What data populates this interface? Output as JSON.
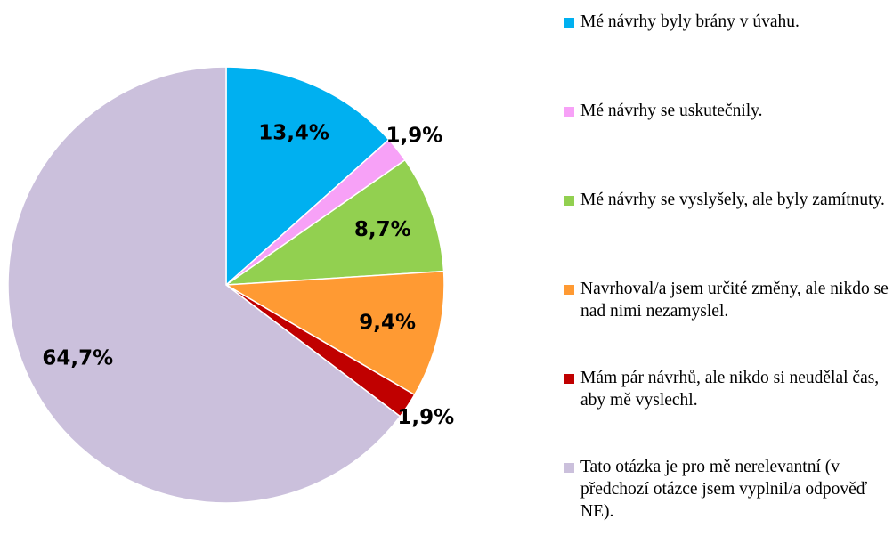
{
  "chart_data": {
    "type": "pie",
    "categories": [
      "Mé návrhy byly brány v úvahu.",
      "Mé návrhy se uskutečnily.",
      "Mé návrhy se vyslyšely, ale byly zamítnuty.",
      "Navrhoval/a jsem určité změny, ale nikdo se nad nimi nezamyslel.",
      "Mám pár návrhů, ale nikdo si neudělal čas, aby mě vyslechl.",
      "Tato otázka je pro mě nerelevantní (v předchozí otázce jsem vyplnil/a odpověď NE)."
    ],
    "values": [
      13.4,
      1.9,
      8.7,
      9.4,
      1.9,
      64.7
    ],
    "value_labels": [
      "13,4%",
      "1,9%",
      "8,7%",
      "9,4%",
      "1,9%",
      "64,7%"
    ],
    "colors": [
      "#00b0f0",
      "#f7a1f7",
      "#92d050",
      "#ff9a33",
      "#c00000",
      "#cbc0dc"
    ],
    "legend": "right"
  }
}
